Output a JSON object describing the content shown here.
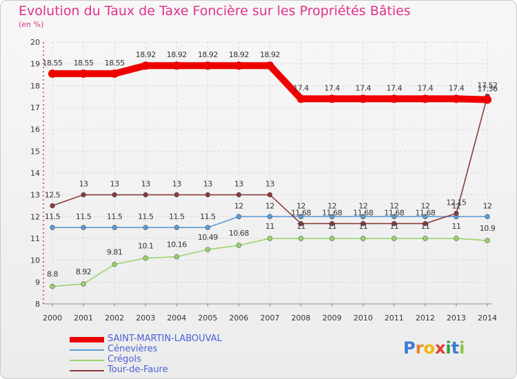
{
  "title": "Evolution du Taux de Taxe Foncière sur les Propriétés Bâties",
  "subtitle": "(en %)",
  "logo": {
    "text": "Proxiti",
    "letters": [
      "P",
      "r",
      "o",
      "x",
      "i",
      "t",
      "i"
    ],
    "colors": [
      "#3a7bd5",
      "#e8832a",
      "#f2b705",
      "#e33d2f",
      "#2f9e44",
      "#3a7bd5",
      "#8bc34a"
    ]
  },
  "chart_data": {
    "type": "line",
    "x": [
      "2000",
      "2001",
      "2002",
      "2003",
      "2004",
      "2005",
      "2006",
      "2007",
      "2008",
      "2009",
      "2010",
      "2011",
      "2012",
      "2013",
      "2014"
    ],
    "ylim": [
      8,
      20
    ],
    "yticks": [
      "8",
      "9",
      "10",
      "11",
      "12",
      "13",
      "14",
      "15",
      "16",
      "17",
      "18",
      "19",
      "20"
    ],
    "grid": true,
    "legend_position": "bottom-left",
    "series": [
      {
        "name": "SAINT-MARTIN-LABOUVAL",
        "color": "#ee0000",
        "values": [
          18.55,
          18.55,
          18.55,
          18.92,
          18.92,
          18.92,
          18.92,
          18.92,
          17.4,
          17.4,
          17.4,
          17.4,
          17.4,
          17.4,
          17.36
        ],
        "labels": [
          "18.55",
          "18.55",
          "18.55",
          "18.92",
          "18.92",
          "18.92",
          "18.92",
          "18.92",
          "17.4",
          "17.4",
          "17.4",
          "17.4",
          "17.4",
          "17.4",
          "17.36"
        ]
      },
      {
        "name": "Cénevières",
        "color": "#5b9bd5",
        "values": [
          11.5,
          11.5,
          11.5,
          11.5,
          11.5,
          11.5,
          12,
          12,
          12,
          12,
          12,
          12,
          12,
          12,
          12
        ],
        "labels": [
          "11.5",
          "11.5",
          "11.5",
          "11.5",
          "11.5",
          "11.5",
          "12",
          "12",
          "12",
          "12",
          "12",
          "12",
          "12",
          "12",
          "12"
        ]
      },
      {
        "name": "Crégols",
        "color": "#9ad36a",
        "values": [
          8.8,
          8.92,
          9.81,
          10.1,
          10.16,
          10.49,
          10.68,
          11,
          11,
          11,
          11,
          11,
          11,
          11,
          10.9
        ],
        "labels": [
          "8.8",
          "8.92",
          "9.81",
          "10.1",
          "10.16",
          "10.49",
          "10.68",
          "11",
          "11",
          "11",
          "11",
          "11",
          "11",
          "11",
          "10.9"
        ]
      },
      {
        "name": "Tour-de-Faure",
        "color": "#8b3a3a",
        "values": [
          12.5,
          13,
          13,
          13,
          13,
          13,
          13,
          13,
          11.68,
          11.68,
          11.68,
          11.68,
          11.68,
          12.15,
          17.52
        ],
        "labels": [
          "12.5",
          "13",
          "13",
          "13",
          "13",
          "13",
          "13",
          "13",
          "11.68",
          "11.68",
          "11.68",
          "11.68",
          "11.68",
          "12.15",
          "17.52"
        ]
      }
    ]
  }
}
